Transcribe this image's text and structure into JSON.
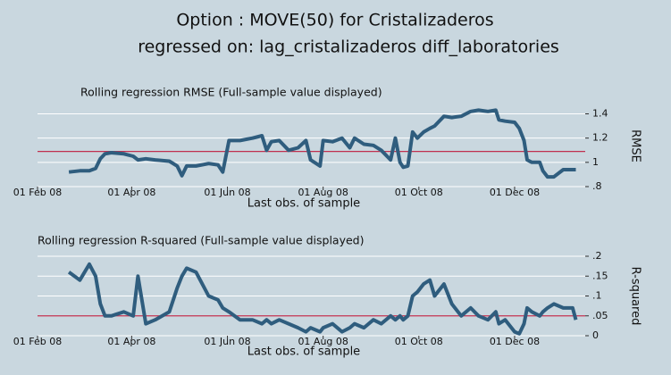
{
  "title": "Option : MOVE(50) for Cristalizaderos",
  "subtitle": "regressed on:  lag_cristalizaderos diff_laboratories",
  "chart_data": [
    {
      "type": "line",
      "title": "Rolling regression RMSE (Full-sample value displayed)",
      "xlabel": "Last obs. of sample",
      "ylabel": "RMSE",
      "y_axis_side": "right",
      "grid": true,
      "xlim": [
        "2008-02-01",
        "2009-01-15"
      ],
      "xticks": [
        {
          "value": "2008-02-01",
          "label": "01 Feb 08"
        },
        {
          "value": "2008-04-01",
          "label": "01 Apr 08"
        },
        {
          "value": "2008-06-01",
          "label": "01 Jun 08"
        },
        {
          "value": "2008-08-01",
          "label": "01 Aug 08"
        },
        {
          "value": "2008-10-01",
          "label": "01 Oct 08"
        },
        {
          "value": "2008-12-01",
          "label": "01 Dec 08"
        }
      ],
      "ylim": [
        0.8,
        1.47
      ],
      "yticks": [
        {
          "value": 0.8,
          "label": ".8"
        },
        1,
        1.2,
        1.4
      ],
      "ref_line": {
        "value": 1.09,
        "color": "#c0304f"
      },
      "x": [
        "2008-02-21",
        "2008-02-28",
        "2008-03-05",
        "2008-03-09",
        "2008-03-12",
        "2008-03-15",
        "2008-03-19",
        "2008-03-27",
        "2008-04-02",
        "2008-04-05",
        "2008-04-10",
        "2008-04-16",
        "2008-04-25",
        "2008-04-30",
        "2008-05-03",
        "2008-05-06",
        "2008-05-12",
        "2008-05-20",
        "2008-05-26",
        "2008-05-29",
        "2008-06-02",
        "2008-06-09",
        "2008-06-17",
        "2008-06-23",
        "2008-06-26",
        "2008-06-29",
        "2008-07-04",
        "2008-07-10",
        "2008-07-16",
        "2008-07-21",
        "2008-07-24",
        "2008-07-30",
        "2008-08-01",
        "2008-08-07",
        "2008-08-13",
        "2008-08-18",
        "2008-08-21",
        "2008-08-27",
        "2008-09-02",
        "2008-09-07",
        "2008-09-13",
        "2008-09-16",
        "2008-09-19",
        "2008-09-21",
        "2008-09-24",
        "2008-09-27",
        "2008-09-30",
        "2008-10-04",
        "2008-10-08",
        "2008-10-11",
        "2008-10-17",
        "2008-10-22",
        "2008-10-28",
        "2008-11-03",
        "2008-11-08",
        "2008-11-14",
        "2008-11-19",
        "2008-11-21",
        "2008-11-25",
        "2008-12-01",
        "2008-12-04",
        "2008-12-07",
        "2008-12-09",
        "2008-12-12",
        "2008-12-17",
        "2008-12-19",
        "2008-12-22",
        "2008-12-26",
        "2009-01-01",
        "2009-01-07",
        "2009-01-09"
      ],
      "series": [
        {
          "color": "#2f5d7e",
          "values": [
            0.92,
            0.93,
            0.93,
            0.95,
            1.03,
            1.07,
            1.08,
            1.07,
            1.05,
            1.02,
            1.03,
            1.02,
            1.01,
            0.97,
            0.89,
            0.97,
            0.97,
            0.99,
            0.98,
            0.92,
            1.18,
            1.18,
            1.2,
            1.22,
            1.1,
            1.17,
            1.18,
            1.1,
            1.12,
            1.18,
            1.02,
            0.97,
            1.18,
            1.17,
            1.2,
            1.12,
            1.2,
            1.15,
            1.14,
            1.1,
            1.02,
            1.2,
            1.0,
            0.96,
            0.97,
            1.25,
            1.2,
            1.25,
            1.28,
            1.3,
            1.38,
            1.37,
            1.38,
            1.42,
            1.43,
            1.42,
            1.43,
            1.35,
            1.34,
            1.33,
            1.28,
            1.18,
            1.02,
            1.0,
            1.0,
            0.93,
            0.88,
            0.88,
            0.94,
            0.94,
            0.94
          ]
        }
      ]
    },
    {
      "type": "line",
      "title": "Rolling regression R-squared (Full-sample value displayed)",
      "xlabel": "Last obs. of sample",
      "ylabel": "R-squared",
      "y_axis_side": "right",
      "grid": true,
      "xlim": [
        "2008-02-01",
        "2009-01-15"
      ],
      "xticks": [
        {
          "value": "2008-02-01",
          "label": "01 Feb 08"
        },
        {
          "value": "2008-04-01",
          "label": "01 Apr 08"
        },
        {
          "value": "2008-06-01",
          "label": "01 Jun 08"
        },
        {
          "value": "2008-08-01",
          "label": "01 Aug 08"
        },
        {
          "value": "2008-10-01",
          "label": "01 Oct 08"
        },
        {
          "value": "2008-12-01",
          "label": "01 Dec 08"
        }
      ],
      "ylim": [
        0,
        0.2
      ],
      "yticks": [
        0,
        {
          "value": 0.05,
          "label": ".05"
        },
        {
          "value": 0.1,
          "label": ".1"
        },
        {
          "value": 0.15,
          "label": ".15"
        },
        {
          "value": 0.2,
          "label": ".2"
        }
      ],
      "ref_line": {
        "value": 0.05,
        "color": "#c0304f"
      },
      "x": [
        "2008-02-21",
        "2008-02-28",
        "2008-03-05",
        "2008-03-09",
        "2008-03-12",
        "2008-03-15",
        "2008-03-19",
        "2008-03-27",
        "2008-04-02",
        "2008-04-05",
        "2008-04-10",
        "2008-04-16",
        "2008-04-25",
        "2008-04-30",
        "2008-05-03",
        "2008-05-06",
        "2008-05-12",
        "2008-05-20",
        "2008-05-26",
        "2008-05-29",
        "2008-06-02",
        "2008-06-09",
        "2008-06-17",
        "2008-06-23",
        "2008-06-26",
        "2008-06-29",
        "2008-07-04",
        "2008-07-10",
        "2008-07-16",
        "2008-07-21",
        "2008-07-24",
        "2008-07-30",
        "2008-08-01",
        "2008-08-07",
        "2008-08-13",
        "2008-08-18",
        "2008-08-21",
        "2008-08-27",
        "2008-09-02",
        "2008-09-07",
        "2008-09-13",
        "2008-09-16",
        "2008-09-19",
        "2008-09-21",
        "2008-09-24",
        "2008-09-27",
        "2008-09-30",
        "2008-10-04",
        "2008-10-08",
        "2008-10-11",
        "2008-10-17",
        "2008-10-22",
        "2008-10-28",
        "2008-11-03",
        "2008-11-08",
        "2008-11-14",
        "2008-11-19",
        "2008-11-21",
        "2008-11-25",
        "2008-12-01",
        "2008-12-04",
        "2008-12-07",
        "2008-12-09",
        "2008-12-12",
        "2008-12-17",
        "2008-12-19",
        "2008-12-22",
        "2008-12-26",
        "2009-01-01",
        "2009-01-07",
        "2009-01-09"
      ],
      "series": [
        {
          "color": "#2f5d7e",
          "values": [
            0.16,
            0.14,
            0.18,
            0.15,
            0.08,
            0.05,
            0.05,
            0.06,
            0.05,
            0.15,
            0.03,
            0.04,
            0.06,
            0.12,
            0.15,
            0.17,
            0.16,
            0.1,
            0.09,
            0.07,
            0.06,
            0.04,
            0.04,
            0.03,
            0.04,
            0.03,
            0.04,
            0.03,
            0.02,
            0.01,
            0.02,
            0.01,
            0.02,
            0.03,
            0.01,
            0.02,
            0.03,
            0.02,
            0.04,
            0.03,
            0.05,
            0.04,
            0.05,
            0.04,
            0.05,
            0.1,
            0.11,
            0.13,
            0.14,
            0.1,
            0.13,
            0.08,
            0.05,
            0.07,
            0.05,
            0.04,
            0.06,
            0.03,
            0.04,
            0.01,
            0.005,
            0.03,
            0.07,
            0.06,
            0.05,
            0.06,
            0.07,
            0.08,
            0.07,
            0.07,
            0.04
          ]
        }
      ]
    }
  ]
}
